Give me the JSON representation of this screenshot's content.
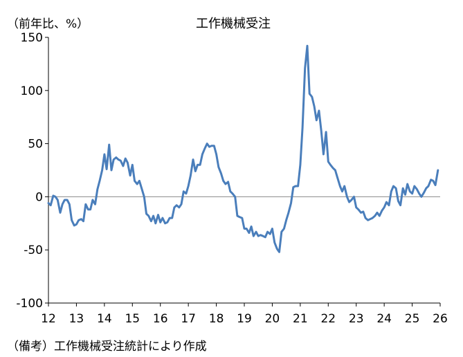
{
  "chart_data": {
    "type": "line",
    "title": "工作機械受注",
    "ylabel": "（前年比、%）",
    "source_note": "（備考）工作機械受注統計により作成",
    "ylim": [
      -100,
      150
    ],
    "yticks": [
      150,
      100,
      50,
      0,
      -50,
      -100
    ],
    "xlim": [
      2012.0,
      2026.0
    ],
    "xticks": [
      "12",
      "13",
      "14",
      "15",
      "16",
      "17",
      "18",
      "19",
      "20",
      "21",
      "22",
      "23",
      "24",
      "25",
      "26"
    ],
    "grid": false,
    "legend": "none",
    "line_color": "#4a7ebb",
    "series": [
      {
        "x": [
          2012.0,
          2012.08,
          2012.17,
          2012.25,
          2012.33,
          2012.42,
          2012.5,
          2012.58,
          2012.67,
          2012.75,
          2012.83,
          2012.92,
          2013.0,
          2013.08,
          2013.17,
          2013.25,
          2013.33,
          2013.42,
          2013.5,
          2013.58,
          2013.67,
          2013.75,
          2013.83,
          2013.92,
          2014.0,
          2014.08,
          2014.17,
          2014.25,
          2014.33,
          2014.42,
          2014.5,
          2014.58,
          2014.67,
          2014.75,
          2014.83,
          2014.92,
          2015.0,
          2015.08,
          2015.17,
          2015.25,
          2015.33,
          2015.42,
          2015.5,
          2015.58,
          2015.67,
          2015.75,
          2015.83,
          2015.92,
          2016.0,
          2016.08,
          2016.17,
          2016.25,
          2016.33,
          2016.42,
          2016.5,
          2016.58,
          2016.67,
          2016.75,
          2016.83,
          2016.92,
          2017.0,
          2017.08,
          2017.17,
          2017.25,
          2017.33,
          2017.42,
          2017.5,
          2017.58,
          2017.67,
          2017.75,
          2017.83,
          2017.92,
          2018.0,
          2018.08,
          2018.17,
          2018.25,
          2018.33,
          2018.42,
          2018.5,
          2018.58,
          2018.67,
          2018.75,
          2018.83,
          2018.92,
          2019.0,
          2019.08,
          2019.17,
          2019.25,
          2019.33,
          2019.42,
          2019.5,
          2019.58,
          2019.67,
          2019.75,
          2019.83,
          2019.92,
          2020.0,
          2020.08,
          2020.17,
          2020.25,
          2020.33,
          2020.42,
          2020.5,
          2020.58,
          2020.67,
          2020.75,
          2020.83,
          2020.92,
          2021.0,
          2021.08,
          2021.17,
          2021.25,
          2021.33,
          2021.42,
          2021.5,
          2021.58,
          2021.67,
          2021.75,
          2021.83,
          2021.92,
          2022.0,
          2022.08,
          2022.17,
          2022.25,
          2022.33,
          2022.42,
          2022.5,
          2022.58,
          2022.67,
          2022.75,
          2022.83,
          2022.92,
          2023.0,
          2023.08,
          2023.17,
          2023.25,
          2023.33,
          2023.42,
          2023.5,
          2023.58,
          2023.67,
          2023.75,
          2023.83,
          2023.92,
          2024.0,
          2024.08,
          2024.17,
          2024.25,
          2024.33,
          2024.42,
          2024.5,
          2024.58,
          2024.67,
          2024.75,
          2024.83,
          2024.92,
          2025.0,
          2025.08,
          2025.17,
          2025.25,
          2025.33,
          2025.42,
          2025.5,
          2025.58,
          2025.67,
          2025.75,
          2025.83,
          2025.92
        ],
        "values": [
          -6,
          -8,
          1,
          0,
          -3,
          -15,
          -7,
          -3,
          -3,
          -7,
          -22,
          -27,
          -26,
          -22,
          -21,
          -23,
          -7,
          -12,
          -12,
          -3,
          -7,
          7,
          15,
          25,
          40,
          26,
          49,
          25,
          35,
          37,
          35,
          34,
          29,
          36,
          32,
          20,
          30,
          15,
          12,
          15,
          8,
          0,
          -16,
          -18,
          -23,
          -18,
          -25,
          -17,
          -24,
          -20,
          -25,
          -24,
          -20,
          -20,
          -10,
          -8,
          -10,
          -7,
          5,
          3,
          10,
          20,
          35,
          24,
          30,
          30,
          40,
          45,
          50,
          47,
          48,
          48,
          40,
          28,
          22,
          15,
          12,
          14,
          5,
          3,
          0,
          -18,
          -19,
          -20,
          -30,
          -30,
          -34,
          -28,
          -37,
          -33,
          -37,
          -36,
          -37,
          -38,
          -33,
          -35,
          -30,
          -43,
          -49,
          -52,
          -33,
          -30,
          -22,
          -15,
          -6,
          9,
          10,
          10,
          30,
          65,
          121,
          142,
          97,
          94,
          85,
          72,
          81,
          62,
          40,
          61,
          33,
          30,
          27,
          25,
          18,
          10,
          5,
          10,
          0,
          -5,
          -3,
          0,
          -10,
          -12,
          -15,
          -14,
          -20,
          -22,
          -21,
          -20,
          -18,
          -15,
          -18,
          -13,
          -10,
          -5,
          -8,
          5,
          10,
          8,
          -4,
          -8,
          8,
          2,
          12,
          5,
          3,
          10,
          7,
          3,
          0,
          4,
          8,
          10,
          16,
          15,
          11,
          25
        ]
      }
    ]
  }
}
